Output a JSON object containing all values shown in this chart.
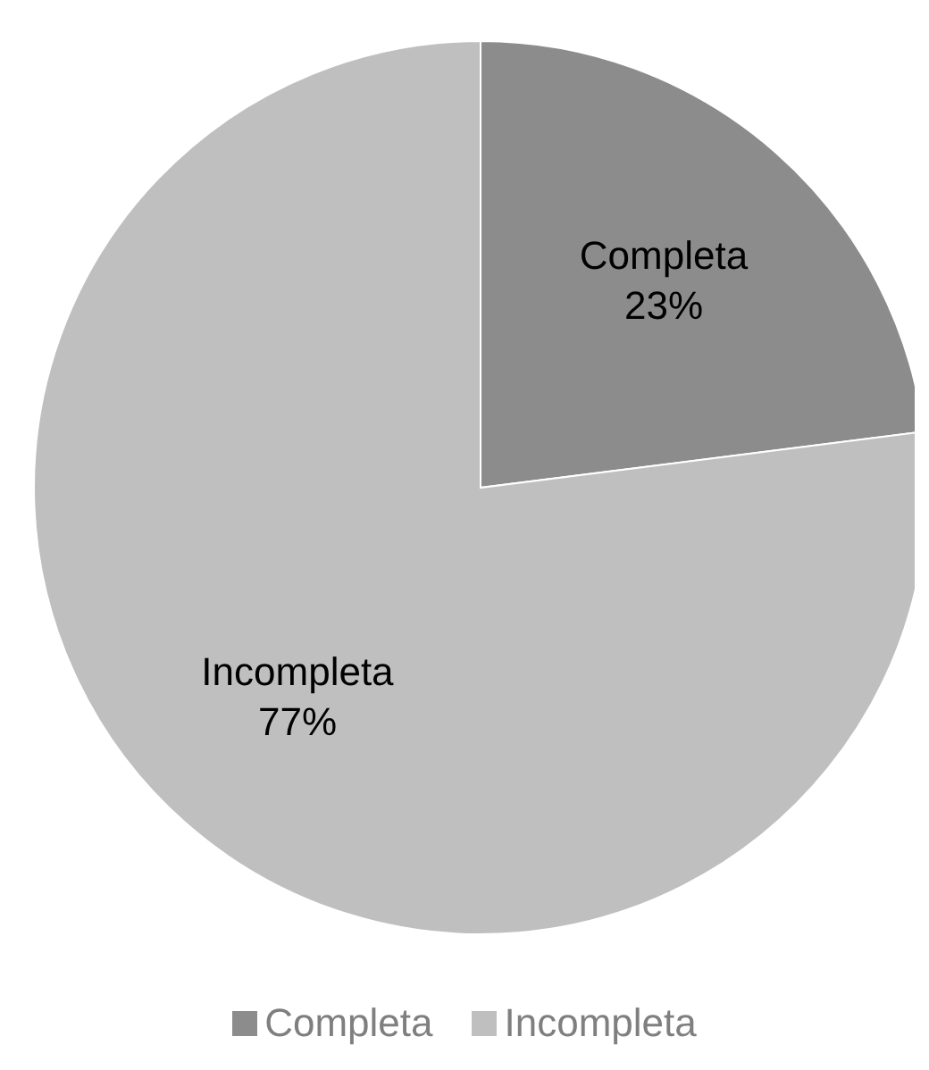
{
  "chart_data": {
    "type": "pie",
    "categories": [
      "Completa",
      "Incompleta"
    ],
    "values": [
      23,
      77
    ],
    "value_labels": [
      "23%",
      "77%"
    ],
    "colors": [
      "#8c8c8c",
      "#bfbfbf"
    ],
    "legend": "bottom"
  }
}
